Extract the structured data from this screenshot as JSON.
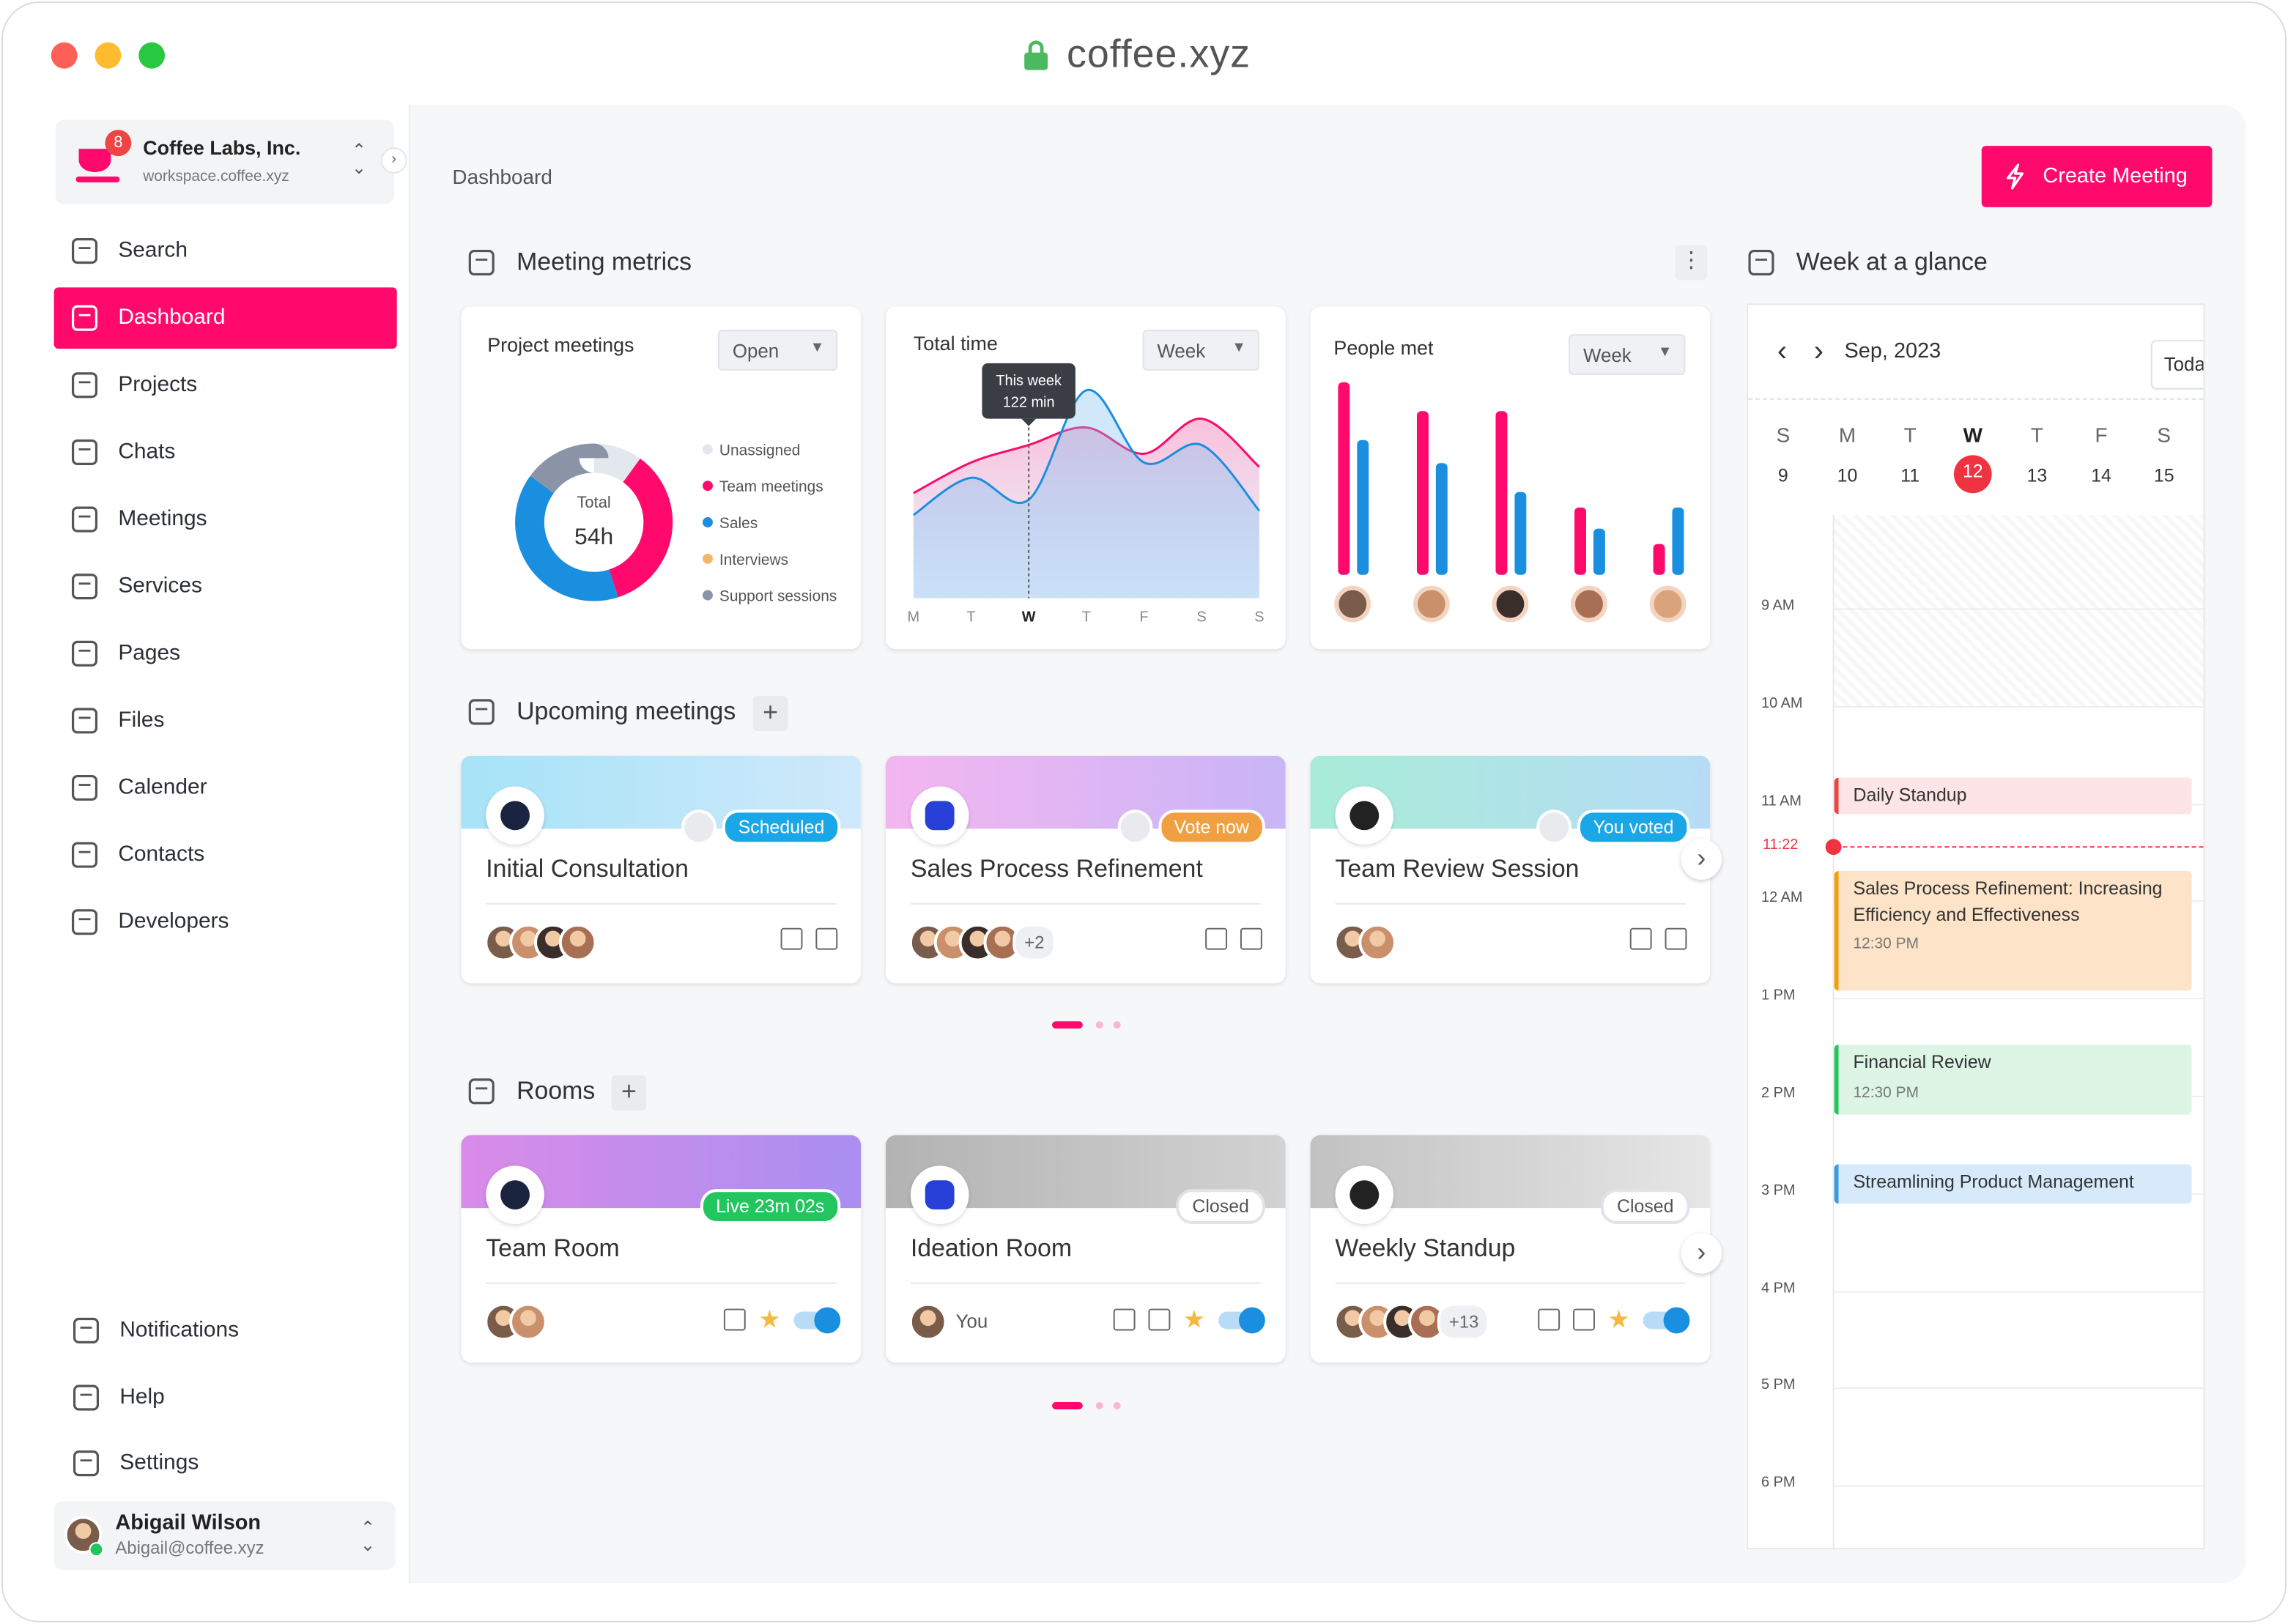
{
  "browser": {
    "url": "coffee.xyz"
  },
  "sidebar": {
    "workspace": {
      "name": "Coffee Labs, Inc.",
      "domain": "workspace.coffee.xyz",
      "badge": 8
    },
    "nav": [
      "Search",
      "Dashboard",
      "Projects",
      "Chats",
      "Meetings",
      "Services",
      "Pages",
      "Files",
      "Calender",
      "Contacts",
      "Developers"
    ],
    "active": 1,
    "footer_nav": [
      "Notifications",
      "Help",
      "Settings"
    ],
    "user": {
      "name": "Abigail Wilson",
      "email": "Abigail@coffee.xyz"
    }
  },
  "header": {
    "breadcrumb": "Dashboard",
    "action": "Create Meeting"
  },
  "metrics": {
    "title": "Meeting metrics",
    "project_meetings": {
      "type": "pie",
      "title": "Project meetings",
      "filter": "Open",
      "total_label": "Total",
      "total": "54h",
      "series": [
        {
          "name": "Unassigned",
          "color": "#e3e7ee",
          "value": 10
        },
        {
          "name": "Team meetings",
          "color": "#ff0a6c",
          "value": 35
        },
        {
          "name": "Sales",
          "color": "#1a8fe0",
          "value": 40
        },
        {
          "name": "Interviews",
          "color": "#f4b66a",
          "value": 0
        },
        {
          "name": "Support sessions",
          "color": "#8a94a6",
          "value": 15
        }
      ]
    },
    "total_time": {
      "type": "line",
      "title": "Total time",
      "filter": "Week",
      "categories": [
        "M",
        "T",
        "W",
        "T",
        "F",
        "S",
        "S"
      ],
      "highlight": 2,
      "ylim": [
        0,
        100
      ],
      "tooltip": {
        "title": "This week",
        "value": "122 min"
      },
      "series": [
        {
          "color": "#ff0a6c",
          "values": [
            48,
            62,
            70,
            78,
            66,
            82,
            60
          ]
        },
        {
          "color": "#1a8fe0",
          "values": [
            38,
            55,
            45,
            95,
            62,
            70,
            40
          ]
        }
      ]
    },
    "people_met": {
      "type": "bar",
      "title": "People met",
      "filter": "Week",
      "ylim": [
        0,
        100
      ],
      "series": [
        {
          "color": "#ff0a6c",
          "values": [
            100,
            85,
            85,
            35,
            16
          ]
        },
        {
          "color": "#1a8fe0",
          "values": [
            70,
            58,
            43,
            24,
            35
          ]
        }
      ]
    }
  },
  "upcoming": {
    "title": "Upcoming meetings",
    "items": [
      {
        "title": "Initial Consultation",
        "status": "Scheduled",
        "status_color": "#1aa7e8"
      },
      {
        "title": "Sales Process Refinement",
        "status": "Vote now",
        "status_color": "#f0a040",
        "more": "+2"
      },
      {
        "title": "Team Review Session",
        "status": "You voted",
        "status_color": "#1aa7e8"
      }
    ]
  },
  "rooms": {
    "title": "Rooms",
    "items": [
      {
        "title": "Team Room",
        "status": "Live 23m 02s",
        "status_color": "#22c55e"
      },
      {
        "title": "Ideation Room",
        "status": "Closed",
        "status_color": "#ffffff",
        "people": "You"
      },
      {
        "title": "Weekly Standup",
        "status": "Closed",
        "status_color": "#ffffff",
        "more": "+13"
      }
    ]
  },
  "calendar": {
    "title": "Week at a glance",
    "month": "Sep, 2023",
    "today": "Today",
    "weekdays": [
      "S",
      "M",
      "T",
      "W",
      "T",
      "F",
      "S"
    ],
    "dates": [
      9,
      10,
      11,
      12,
      13,
      14,
      15
    ],
    "selected": 3,
    "hours": [
      "9 AM",
      "10 AM",
      "11 AM",
      "12 AM",
      "1 PM",
      "2 PM",
      "3 PM",
      "4 PM",
      "5 PM",
      "6 PM"
    ],
    "now": "11:22",
    "events": [
      {
        "title": "Daily Standup",
        "color": "#ef4444",
        "bg": "#fde4e6"
      },
      {
        "title": "Sales Process Refinement: Increasing Efficiency and Effectiveness",
        "time": "12:30 PM",
        "color": "#f59e0b",
        "bg": "#fde3c8"
      },
      {
        "title": "Financial Review",
        "time": "12:30 PM",
        "color": "#22c55e",
        "bg": "#dcf5e4"
      },
      {
        "title": "Streamlining Product Management",
        "color": "#3b9be0",
        "bg": "#d6eafb"
      }
    ]
  }
}
